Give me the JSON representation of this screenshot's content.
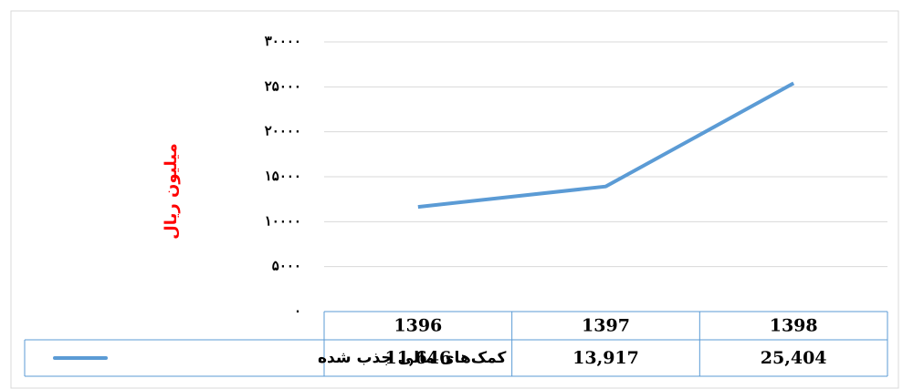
{
  "chart_data": {
    "type": "line",
    "y_label": "میلیون ریال",
    "categories": [
      "1396",
      "1397",
      "1398"
    ],
    "series": [
      {
        "name": "کمک‌های مالی جذب شده",
        "color": "#5b9bd5",
        "values": [
          11646,
          13917,
          25404
        ],
        "value_labels": [
          "11,646",
          "13,917",
          "25,404"
        ]
      }
    ],
    "ylim": [
      0,
      30000
    ],
    "yticks": [
      {
        "value": 0,
        "label": "۰"
      },
      {
        "value": 5000,
        "label": "۵۰۰۰"
      },
      {
        "value": 10000,
        "label": "۱۰۰۰۰"
      },
      {
        "value": 15000,
        "label": "۱۵۰۰۰"
      },
      {
        "value": 20000,
        "label": "۲۰۰۰۰"
      },
      {
        "value": 25000,
        "label": "۲۵۰۰۰"
      },
      {
        "value": 30000,
        "label": "۳۰۰۰۰"
      }
    ],
    "grid": true,
    "data_table": true
  }
}
